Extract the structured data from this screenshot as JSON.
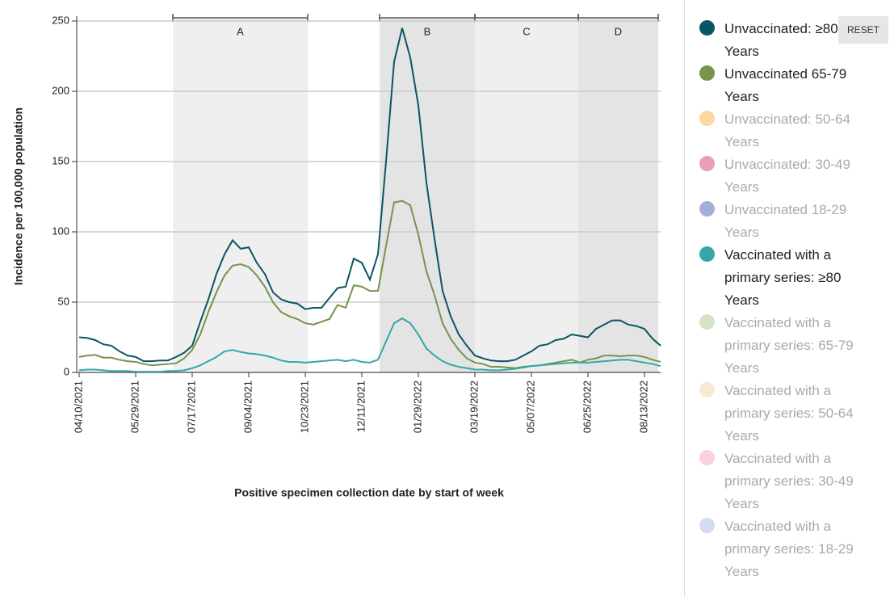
{
  "chart_data": {
    "type": "line",
    "x_label": "Positive specimen collection date by start of week",
    "y_label": "Incidence per 100,000 population",
    "reset_button": "RESET",
    "periods": [
      "A",
      "B",
      "C",
      "D"
    ],
    "categories": [
      "04/10/2021",
      null,
      null,
      null,
      null,
      null,
      null,
      "05/29/2021",
      null,
      null,
      null,
      null,
      null,
      null,
      "07/17/2021",
      null,
      null,
      null,
      null,
      null,
      null,
      "09/04/2021",
      null,
      null,
      null,
      null,
      null,
      null,
      "10/23/2021",
      null,
      null,
      null,
      null,
      null,
      null,
      "12/11/2021",
      null,
      null,
      null,
      null,
      null,
      null,
      "01/29/2022",
      null,
      null,
      null,
      null,
      null,
      null,
      "03/19/2022",
      null,
      null,
      null,
      null,
      null,
      null,
      "05/07/2022",
      null,
      null,
      null,
      null,
      null,
      null,
      "06/25/2022",
      null,
      null,
      null,
      null,
      null,
      null,
      "08/13/2022",
      null,
      null
    ],
    "ylim": [
      0,
      250
    ],
    "yticks": [
      0,
      50,
      100,
      150,
      200,
      250
    ],
    "grid": true,
    "series": [
      {
        "name": "Unvaccinated: ≥80 Years",
        "color": "#0b5563",
        "active": true,
        "values": [
          25,
          24.5,
          23,
          20,
          19,
          15,
          12,
          11,
          8,
          8,
          8.5,
          8.5,
          11,
          14,
          19,
          36,
          52,
          70,
          84,
          94,
          88,
          89,
          78,
          70,
          57,
          52,
          50,
          49,
          45,
          46,
          46,
          53,
          60,
          61,
          81,
          78,
          66,
          84,
          150,
          221,
          245,
          224,
          190,
          135,
          95,
          58,
          40,
          27,
          19,
          12,
          10,
          8.5,
          8,
          8,
          9,
          12,
          15,
          19,
          20,
          23,
          24,
          27,
          26,
          25,
          31,
          34,
          37,
          37,
          34,
          33,
          31,
          24,
          19
        ]
      },
      {
        "name": "Unvaccinated 65-79 Years",
        "color": "#76944c",
        "active": true,
        "values": [
          11,
          12,
          12.5,
          10.5,
          10.5,
          9,
          8,
          7.5,
          6,
          5,
          5.5,
          6,
          6.5,
          10,
          16,
          27,
          43,
          57,
          69,
          76,
          77,
          75,
          69,
          61,
          50,
          43,
          40,
          38,
          35,
          34,
          36,
          38,
          48,
          46,
          62,
          61,
          58,
          58,
          90,
          121,
          122,
          119,
          98,
          72,
          55,
          35,
          24,
          16,
          10,
          7,
          6,
          4,
          4,
          3.5,
          3,
          4,
          4.5,
          5,
          6,
          7,
          8,
          9,
          7,
          9,
          10,
          12,
          12,
          11.5,
          12,
          12,
          11,
          9,
          7.5
        ]
      },
      {
        "name": "Unvaccinated: 50-64 Years",
        "color": "#fcd9a0",
        "active": false
      },
      {
        "name": "Unvaccinated: 30-49 Years",
        "color": "#e8a0b4",
        "active": false
      },
      {
        "name": "Unvaccinated 18-29 Years",
        "color": "#a3aedb",
        "active": false
      },
      {
        "name": "Vaccinated with a primary series: ≥80 Years",
        "color": "#35a7a9",
        "active": true,
        "values": [
          1.5,
          2,
          2,
          1.5,
          1,
          1,
          1,
          0.5,
          0.5,
          0.5,
          0.5,
          1,
          1,
          1.5,
          3,
          5,
          8,
          11,
          15,
          16,
          14.5,
          13.5,
          13,
          12,
          10.5,
          8.5,
          7.5,
          7.5,
          7,
          7.5,
          8,
          8.5,
          9,
          8,
          9,
          7.5,
          7,
          9,
          22,
          35,
          38.5,
          35,
          27,
          17,
          12,
          8,
          5.5,
          4,
          3,
          2,
          2,
          1.5,
          1.5,
          2,
          2.5,
          3.5,
          4.5,
          5,
          5.5,
          6,
          6.5,
          7,
          7,
          7,
          7.5,
          8,
          8.5,
          9,
          9,
          8,
          7,
          6,
          4.5
        ]
      },
      {
        "name": "Vaccinated with a primary series: 65-79 Years",
        "color": "#d5e3c8",
        "active": false
      },
      {
        "name": "Vaccinated with a primary series: 50-64 Years",
        "color": "#f8e8d4",
        "active": false
      },
      {
        "name": "Vaccinated with a primary series: 30-49 Years",
        "color": "#fbd0e0",
        "active": false
      },
      {
        "name": "Vaccinated with a primary series: 18-29 Years",
        "color": "#d3dcf2",
        "active": false
      }
    ]
  }
}
